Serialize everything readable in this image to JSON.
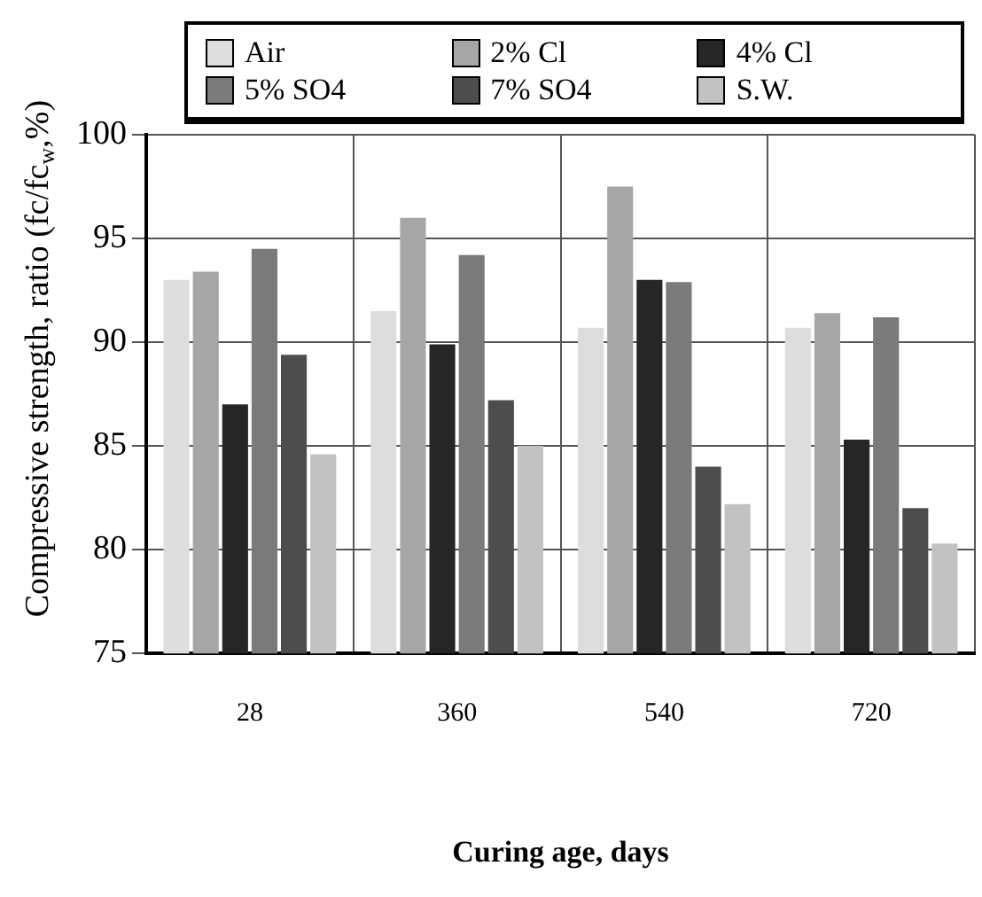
{
  "chart_data": {
    "type": "bar",
    "xlabel": "Curing age, days",
    "ylabel": "Compressive strength, ratio (fc/fc$_{w}$,%)",
    "categories": [
      "28",
      "360",
      "540",
      "720"
    ],
    "series": [
      {
        "name": "Air",
        "color": "#dddddd",
        "values": [
          93.0,
          91.5,
          90.7,
          90.7
        ]
      },
      {
        "name": "2% Cl",
        "color": "#a6a6a6",
        "values": [
          93.4,
          96.0,
          97.5,
          91.4
        ]
      },
      {
        "name": "4% Cl",
        "color": "#262626",
        "values": [
          87.0,
          89.9,
          93.0,
          85.3
        ]
      },
      {
        "name": "5% SO4",
        "color": "#7a7a7a",
        "values": [
          94.5,
          94.2,
          92.9,
          91.2
        ]
      },
      {
        "name": "7% SO4",
        "color": "#4d4d4d",
        "values": [
          89.4,
          87.2,
          84.0,
          82.0
        ]
      },
      {
        "name": "S.W.",
        "color": "#c2c2c2",
        "values": [
          84.6,
          85.0,
          82.2,
          80.3
        ]
      }
    ],
    "ylim": [
      75,
      100
    ],
    "yticks": [
      75,
      80,
      85,
      90,
      95,
      100
    ],
    "grid": true,
    "legend": "top"
  }
}
